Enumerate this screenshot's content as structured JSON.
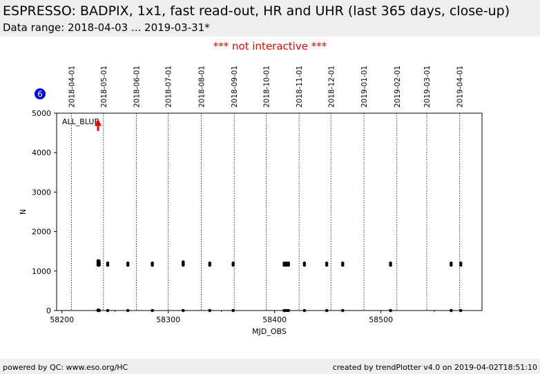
{
  "header": {
    "title": "ESPRESSO: BADPIX, 1x1, fast read-out, HR and UHR (last 365 days, close-up)",
    "subtitle": "Data range: 2018-04-03 ... 2019-03-31*"
  },
  "notice": "*** not interactive ***",
  "footer": {
    "left": "powered by QC: www.eso.org/HC",
    "right": "created by trendPlotter v4.0 on 2019-04-02T18:51:10"
  },
  "badge": {
    "value": "6",
    "color": "#0000ee"
  },
  "chart_data": {
    "type": "scatter",
    "xlabel": "MJD_OBS",
    "ylabel": "N",
    "xlim": [
      58195,
      58595
    ],
    "ylim": [
      0,
      5000
    ],
    "xticks": [
      58200,
      58300,
      58400,
      58500
    ],
    "yticks": [
      0,
      1000,
      2000,
      3000,
      4000,
      5000
    ],
    "grid": false,
    "legend_text": "ALL_BLUE",
    "date_markers": [
      {
        "label": "2018-04-01",
        "mjd": 58209
      },
      {
        "label": "2018-05-01",
        "mjd": 58239
      },
      {
        "label": "2018-06-01",
        "mjd": 58270
      },
      {
        "label": "2018-07-01",
        "mjd": 58300
      },
      {
        "label": "2018-08-01",
        "mjd": 58331
      },
      {
        "label": "2018-09-01",
        "mjd": 58362
      },
      {
        "label": "2018-10-01",
        "mjd": 58392
      },
      {
        "label": "2018-11-01",
        "mjd": 58423
      },
      {
        "label": "2018-12-01",
        "mjd": 58453
      },
      {
        "label": "2019-01-01",
        "mjd": 58484
      },
      {
        "label": "2019-02-01",
        "mjd": 58515
      },
      {
        "label": "2019-03-01",
        "mjd": 58543
      },
      {
        "label": "2019-04-01",
        "mjd": 58574
      }
    ],
    "series": [
      {
        "color": "#000000",
        "x": [
          58234,
          58234,
          58234,
          58234,
          58234,
          58234,
          58234,
          58235,
          58235,
          58235,
          58235,
          58235,
          58235,
          58243,
          58243,
          58243,
          58262,
          58262,
          58262,
          58285,
          58285,
          58285,
          58314,
          58314,
          58314,
          58314,
          58314,
          58339,
          58339,
          58339,
          58361,
          58361,
          58361,
          58409,
          58409,
          58409,
          58411,
          58411,
          58411,
          58413,
          58413,
          58413,
          58428,
          58428,
          58428,
          58449,
          58449,
          58449,
          58464,
          58464,
          58464,
          58509,
          58509,
          58509,
          58566,
          58566,
          58566,
          58575,
          58575,
          58575
        ],
        "y": [
          1150,
          1170,
          1200,
          1230,
          1260,
          10,
          0,
          1150,
          1200,
          1250,
          1170,
          5,
          0,
          1150,
          1200,
          0,
          1150,
          1200,
          0,
          1150,
          1200,
          0,
          1150,
          1170,
          1200,
          1230,
          0,
          1150,
          1200,
          0,
          1150,
          1200,
          0,
          1150,
          1200,
          0,
          1150,
          1200,
          0,
          1150,
          1200,
          0,
          1150,
          1200,
          0,
          1150,
          1200,
          0,
          1150,
          1200,
          0,
          1150,
          1200,
          0,
          1150,
          1200,
          0,
          1150,
          1200,
          0
        ]
      }
    ],
    "arrow": {
      "x": 58234,
      "y_from": 4550,
      "y_to": 4800,
      "color": "#ee0000"
    }
  }
}
